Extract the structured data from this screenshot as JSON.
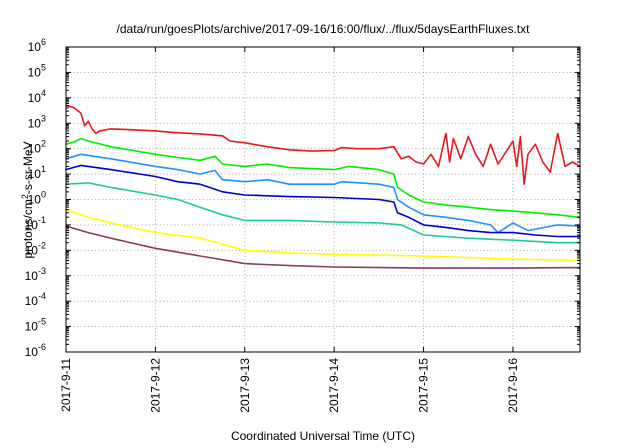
{
  "chart_data": {
    "type": "line",
    "title": "/data/run/goesPlots/archive/2017-09-16/16:00/flux/../flux/5daysEarthFluxes.txt",
    "xlabel": "Coordinated Universal Time (UTC)",
    "ylabel": {
      "base": "protons/cm",
      "sup": "2",
      "rest": "-s-sr-MeV"
    },
    "xscale": "time",
    "yscale": "log",
    "grid": true,
    "legend": "none",
    "xlim": [
      "2017-09-11 00:00",
      "2017-09-16 18:00"
    ],
    "ylim": [
      1e-06,
      1000000.0
    ],
    "x_ticks": [
      "2017-9-11",
      "2017-9-12",
      "2017-9-13",
      "2017-9-14",
      "2017-9-15",
      "2017-9-16"
    ],
    "y_ticks": [
      {
        "base": "10",
        "exp": "-6",
        "value": 1e-06
      },
      {
        "base": "10",
        "exp": "-5",
        "value": 1e-05
      },
      {
        "base": "10",
        "exp": "-4",
        "value": 0.0001
      },
      {
        "base": "10",
        "exp": "-3",
        "value": 0.001
      },
      {
        "base": "10",
        "exp": "-2",
        "value": 0.01
      },
      {
        "base": "10",
        "exp": "-1",
        "value": 0.1
      },
      {
        "base": "10",
        "exp": "0",
        "value": 1
      },
      {
        "base": "10",
        "exp": "1",
        "value": 10
      },
      {
        "base": "10",
        "exp": "2",
        "value": 100
      },
      {
        "base": "10",
        "exp": "3",
        "value": 1000
      },
      {
        "base": "10",
        "exp": "4",
        "value": 10000
      },
      {
        "base": "10",
        "exp": "5",
        "value": 100000
      },
      {
        "base": "10",
        "exp": "6",
        "value": 1000000
      }
    ],
    "series": [
      {
        "color": "#e41a1c",
        "points": [
          [
            "2017-09-11 00:00",
            5000
          ],
          [
            "2017-09-11 02:00",
            4200
          ],
          [
            "2017-09-11 04:00",
            2500
          ],
          [
            "2017-09-11 05:00",
            800
          ],
          [
            "2017-09-11 06:00",
            1200
          ],
          [
            "2017-09-11 07:00",
            600
          ],
          [
            "2017-09-11 08:00",
            400
          ],
          [
            "2017-09-11 09:00",
            500
          ],
          [
            "2017-09-11 12:00",
            600
          ],
          [
            "2017-09-11 18:00",
            550
          ],
          [
            "2017-09-12 00:00",
            500
          ],
          [
            "2017-09-12 06:00",
            420
          ],
          [
            "2017-09-12 12:00",
            380
          ],
          [
            "2017-09-12 18:00",
            320
          ],
          [
            "2017-09-12 20:00",
            200
          ],
          [
            "2017-09-13 00:00",
            170
          ],
          [
            "2017-09-13 06:00",
            120
          ],
          [
            "2017-09-13 12:00",
            90
          ],
          [
            "2017-09-13 18:00",
            80
          ],
          [
            "2017-09-14 00:00",
            85
          ],
          [
            "2017-09-14 02:00",
            110
          ],
          [
            "2017-09-14 06:00",
            100
          ],
          [
            "2017-09-14 12:00",
            100
          ],
          [
            "2017-09-14 16:00",
            120
          ],
          [
            "2017-09-14 18:00",
            40
          ],
          [
            "2017-09-14 20:00",
            50
          ],
          [
            "2017-09-14 22:00",
            30
          ],
          [
            "2017-09-15 00:00",
            25
          ],
          [
            "2017-09-15 02:00",
            60
          ],
          [
            "2017-09-15 04:00",
            20
          ],
          [
            "2017-09-15 06:00",
            400
          ],
          [
            "2017-09-15 07:00",
            30
          ],
          [
            "2017-09-15 08:00",
            250
          ],
          [
            "2017-09-15 10:00",
            40
          ],
          [
            "2017-09-15 12:00",
            300
          ],
          [
            "2017-09-15 14:00",
            60
          ],
          [
            "2017-09-15 16:00",
            20
          ],
          [
            "2017-09-15 18:00",
            150
          ],
          [
            "2017-09-15 20:00",
            25
          ],
          [
            "2017-09-16 00:00",
            200
          ],
          [
            "2017-09-16 01:00",
            20
          ],
          [
            "2017-09-16 02:00",
            300
          ],
          [
            "2017-09-16 03:00",
            4
          ],
          [
            "2017-09-16 04:00",
            60
          ],
          [
            "2017-09-16 06:00",
            150
          ],
          [
            "2017-09-16 08:00",
            30
          ],
          [
            "2017-09-16 10:00",
            12
          ],
          [
            "2017-09-16 12:00",
            400
          ],
          [
            "2017-09-16 14:00",
            20
          ],
          [
            "2017-09-16 16:00",
            30
          ],
          [
            "2017-09-16 18:00",
            20
          ]
        ]
      },
      {
        "color": "#00ee00",
        "points": [
          [
            "2017-09-11 00:00",
            150
          ],
          [
            "2017-09-11 02:00",
            180
          ],
          [
            "2017-09-11 04:00",
            250
          ],
          [
            "2017-09-11 06:00",
            200
          ],
          [
            "2017-09-11 12:00",
            120
          ],
          [
            "2017-09-12 00:00",
            60
          ],
          [
            "2017-09-12 06:00",
            45
          ],
          [
            "2017-09-12 12:00",
            35
          ],
          [
            "2017-09-12 16:00",
            50
          ],
          [
            "2017-09-12 18:00",
            25
          ],
          [
            "2017-09-13 00:00",
            20
          ],
          [
            "2017-09-13 06:00",
            25
          ],
          [
            "2017-09-13 12:00",
            18
          ],
          [
            "2017-09-14 00:00",
            15
          ],
          [
            "2017-09-14 04:00",
            20
          ],
          [
            "2017-09-14 12:00",
            15
          ],
          [
            "2017-09-14 16:00",
            10
          ],
          [
            "2017-09-14 17:00",
            3
          ],
          [
            "2017-09-14 20:00",
            1.5
          ],
          [
            "2017-09-15 00:00",
            0.8
          ],
          [
            "2017-09-15 06:00",
            0.6
          ],
          [
            "2017-09-15 12:00",
            0.5
          ],
          [
            "2017-09-15 18:00",
            0.4
          ],
          [
            "2017-09-16 00:00",
            0.35
          ],
          [
            "2017-09-16 06:00",
            0.3
          ],
          [
            "2017-09-16 12:00",
            0.25
          ],
          [
            "2017-09-16 18:00",
            0.2
          ]
        ]
      },
      {
        "color": "#1e90ff",
        "points": [
          [
            "2017-09-11 00:00",
            40
          ],
          [
            "2017-09-11 04:00",
            60
          ],
          [
            "2017-09-11 12:00",
            40
          ],
          [
            "2017-09-12 00:00",
            20
          ],
          [
            "2017-09-12 06:00",
            15
          ],
          [
            "2017-09-12 12:00",
            10
          ],
          [
            "2017-09-12 16:00",
            14
          ],
          [
            "2017-09-12 18:00",
            6
          ],
          [
            "2017-09-13 00:00",
            5
          ],
          [
            "2017-09-13 06:00",
            6
          ],
          [
            "2017-09-13 12:00",
            4
          ],
          [
            "2017-09-14 00:00",
            4
          ],
          [
            "2017-09-14 02:00",
            5
          ],
          [
            "2017-09-14 12:00",
            4
          ],
          [
            "2017-09-14 16:00",
            3
          ],
          [
            "2017-09-14 17:00",
            1
          ],
          [
            "2017-09-14 20:00",
            0.5
          ],
          [
            "2017-09-15 00:00",
            0.25
          ],
          [
            "2017-09-15 06:00",
            0.2
          ],
          [
            "2017-09-15 12:00",
            0.15
          ],
          [
            "2017-09-15 18:00",
            0.1
          ],
          [
            "2017-09-15 20:00",
            0.05
          ],
          [
            "2017-09-16 00:00",
            0.12
          ],
          [
            "2017-09-16 04:00",
            0.06
          ],
          [
            "2017-09-16 12:00",
            0.1
          ],
          [
            "2017-09-16 18:00",
            0.09
          ]
        ]
      },
      {
        "color": "#0000cd",
        "points": [
          [
            "2017-09-11 00:00",
            15
          ],
          [
            "2017-09-11 04:00",
            22
          ],
          [
            "2017-09-11 12:00",
            15
          ],
          [
            "2017-09-12 00:00",
            8
          ],
          [
            "2017-09-12 06:00",
            5
          ],
          [
            "2017-09-12 12:00",
            4
          ],
          [
            "2017-09-12 18:00",
            2
          ],
          [
            "2017-09-13 00:00",
            1.5
          ],
          [
            "2017-09-13 12:00",
            1.3
          ],
          [
            "2017-09-14 00:00",
            1.2
          ],
          [
            "2017-09-14 12:00",
            1.0
          ],
          [
            "2017-09-14 16:00",
            0.8
          ],
          [
            "2017-09-14 17:00",
            0.3
          ],
          [
            "2017-09-14 20:00",
            0.2
          ],
          [
            "2017-09-15 00:00",
            0.1
          ],
          [
            "2017-09-15 06:00",
            0.08
          ],
          [
            "2017-09-15 12:00",
            0.06
          ],
          [
            "2017-09-15 18:00",
            0.05
          ],
          [
            "2017-09-16 00:00",
            0.05
          ],
          [
            "2017-09-16 06:00",
            0.04
          ],
          [
            "2017-09-16 12:00",
            0.035
          ],
          [
            "2017-09-16 18:00",
            0.035
          ]
        ]
      },
      {
        "color": "#20c8a0",
        "points": [
          [
            "2017-09-11 00:00",
            4
          ],
          [
            "2017-09-11 06:00",
            4.5
          ],
          [
            "2017-09-11 12:00",
            3
          ],
          [
            "2017-09-12 00:00",
            1.5
          ],
          [
            "2017-09-12 06:00",
            1
          ],
          [
            "2017-09-12 12:00",
            0.5
          ],
          [
            "2017-09-12 18:00",
            0.25
          ],
          [
            "2017-09-13 00:00",
            0.15
          ],
          [
            "2017-09-13 12:00",
            0.15
          ],
          [
            "2017-09-14 00:00",
            0.13
          ],
          [
            "2017-09-14 12:00",
            0.12
          ],
          [
            "2017-09-14 18:00",
            0.1
          ],
          [
            "2017-09-15 00:00",
            0.04
          ],
          [
            "2017-09-15 12:00",
            0.03
          ],
          [
            "2017-09-16 00:00",
            0.025
          ],
          [
            "2017-09-16 12:00",
            0.02
          ],
          [
            "2017-09-16 18:00",
            0.02
          ]
        ]
      },
      {
        "color": "#ffff00",
        "points": [
          [
            "2017-09-11 00:00",
            0.4
          ],
          [
            "2017-09-11 06:00",
            0.2
          ],
          [
            "2017-09-11 12:00",
            0.12
          ],
          [
            "2017-09-12 00:00",
            0.05
          ],
          [
            "2017-09-12 12:00",
            0.03
          ],
          [
            "2017-09-13 00:00",
            0.01
          ],
          [
            "2017-09-13 12:00",
            0.008
          ],
          [
            "2017-09-14 00:00",
            0.007
          ],
          [
            "2017-09-15 00:00",
            0.006
          ],
          [
            "2017-09-16 00:00",
            0.0045
          ],
          [
            "2017-09-16 18:00",
            0.004
          ]
        ]
      },
      {
        "color": "#8b3a62",
        "points": [
          [
            "2017-09-11 00:00",
            0.09
          ],
          [
            "2017-09-11 06:00",
            0.05
          ],
          [
            "2017-09-11 12:00",
            0.03
          ],
          [
            "2017-09-12 00:00",
            0.012
          ],
          [
            "2017-09-12 12:00",
            0.006
          ],
          [
            "2017-09-13 00:00",
            0.003
          ],
          [
            "2017-09-13 12:00",
            0.0025
          ],
          [
            "2017-09-14 00:00",
            0.0022
          ],
          [
            "2017-09-15 00:00",
            0.002
          ],
          [
            "2017-09-16 00:00",
            0.002
          ],
          [
            "2017-09-16 18:00",
            0.0021
          ]
        ]
      }
    ]
  }
}
